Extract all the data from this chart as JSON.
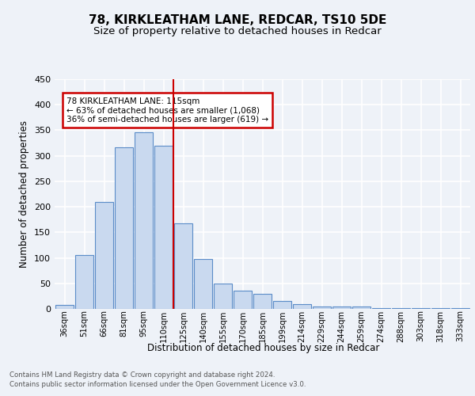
{
  "title1": "78, KIRKLEATHAM LANE, REDCAR, TS10 5DE",
  "title2": "Size of property relative to detached houses in Redcar",
  "xlabel": "Distribution of detached houses by size in Redcar",
  "ylabel": "Number of detached properties",
  "categories": [
    "36sqm",
    "51sqm",
    "66sqm",
    "81sqm",
    "95sqm",
    "110sqm",
    "125sqm",
    "140sqm",
    "155sqm",
    "170sqm",
    "185sqm",
    "199sqm",
    "214sqm",
    "229sqm",
    "244sqm",
    "259sqm",
    "274sqm",
    "288sqm",
    "303sqm",
    "318sqm",
    "333sqm"
  ],
  "values": [
    7,
    106,
    210,
    316,
    346,
    320,
    168,
    98,
    50,
    36,
    29,
    16,
    9,
    4,
    5,
    4,
    1,
    1,
    1,
    1,
    1
  ],
  "bar_color": "#c9d9ef",
  "bar_edge_color": "#5b8cc8",
  "vline_color": "#cc0000",
  "vline_x": 5.5,
  "annotation_line1": "78 KIRKLEATHAM LANE: 115sqm",
  "annotation_line2": "← 63% of detached houses are smaller (1,068)",
  "annotation_line3": "36% of semi-detached houses are larger (619) →",
  "annotation_box_color": "#cc0000",
  "ylim": [
    0,
    450
  ],
  "yticks": [
    0,
    50,
    100,
    150,
    200,
    250,
    300,
    350,
    400,
    450
  ],
  "footer1": "Contains HM Land Registry data © Crown copyright and database right 2024.",
  "footer2": "Contains public sector information licensed under the Open Government Licence v3.0.",
  "bg_color": "#eef2f8",
  "plot_bg_color": "#eef2f8"
}
